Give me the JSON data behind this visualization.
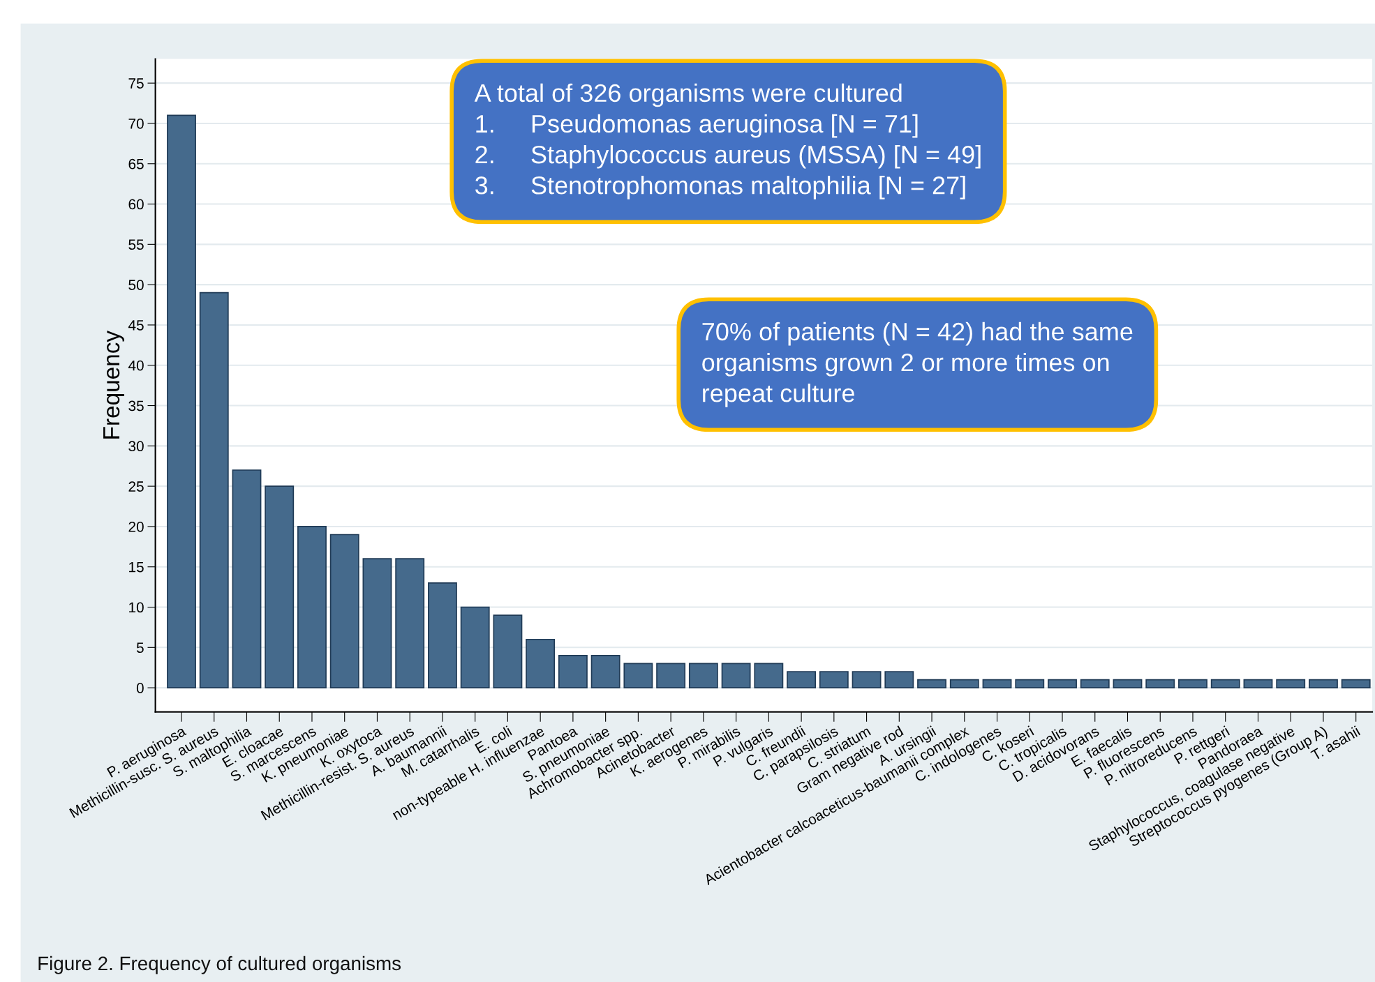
{
  "chart_data": {
    "type": "bar",
    "ylabel": "Frequency",
    "categories": [
      "P. aeruginosa",
      "Methicillin-susc. S. aureus",
      "S. maltophilia",
      "E. cloacae",
      "S. marcescens",
      "K. pneumoniae",
      "K. oxytoca",
      "Methicillin-resist. S. aureus",
      "A. baumannii",
      "M. catarrhalis",
      "E. coli",
      "non-typeable H. influenzae",
      "Pantoea",
      "S. pneumoniae",
      "Achromobacter spp.",
      "Acinetobacter",
      "K. aerogenes",
      "P. mirabilis",
      "P. vulgaris",
      "C. freundii",
      "C. parapsilosis",
      "C. striatum",
      "Gram negative rod",
      "A. ursingii",
      "Acientobacter calcoaceticus-baumanii complex",
      "C. indologenes",
      "C. koseri",
      "C. tropicalis",
      "D. acidovorans",
      "E. faecalis",
      "P. fluorescens",
      "P. nitroreducens",
      "P. rettgeri",
      "Pandoraea",
      "Staphylococcus, coagulase negative",
      "Streptococcus pyogenes (Group A)",
      "T. asahii"
    ],
    "values": [
      71,
      49,
      27,
      25,
      20,
      19,
      16,
      16,
      13,
      10,
      9,
      6,
      4,
      4,
      3,
      3,
      3,
      3,
      3,
      2,
      2,
      2,
      2,
      1,
      1,
      1,
      1,
      1,
      1,
      1,
      1,
      1,
      1,
      1,
      1,
      1,
      1
    ],
    "color": "#456a8c",
    "ylim": [
      -3,
      78
    ],
    "yticks": [
      0,
      5,
      10,
      15,
      20,
      25,
      30,
      35,
      40,
      45,
      50,
      55,
      60,
      65,
      70,
      75
    ],
    "grid": "y",
    "annotations": [
      "A total of 326 organisms were cultured\n1.     Pseudomonas aeruginosa [N = 71]\n2.     Staphylococcus aureus (MSSA) [N = 49]\n3.     Stenotrophomonas maltophilia [N = 27]",
      "70% of patients (N = 42) had the same\norganisms grown 2 or more times on\nrepeat culture",
      "Figure 2. Frequency of cultured organisms"
    ]
  }
}
